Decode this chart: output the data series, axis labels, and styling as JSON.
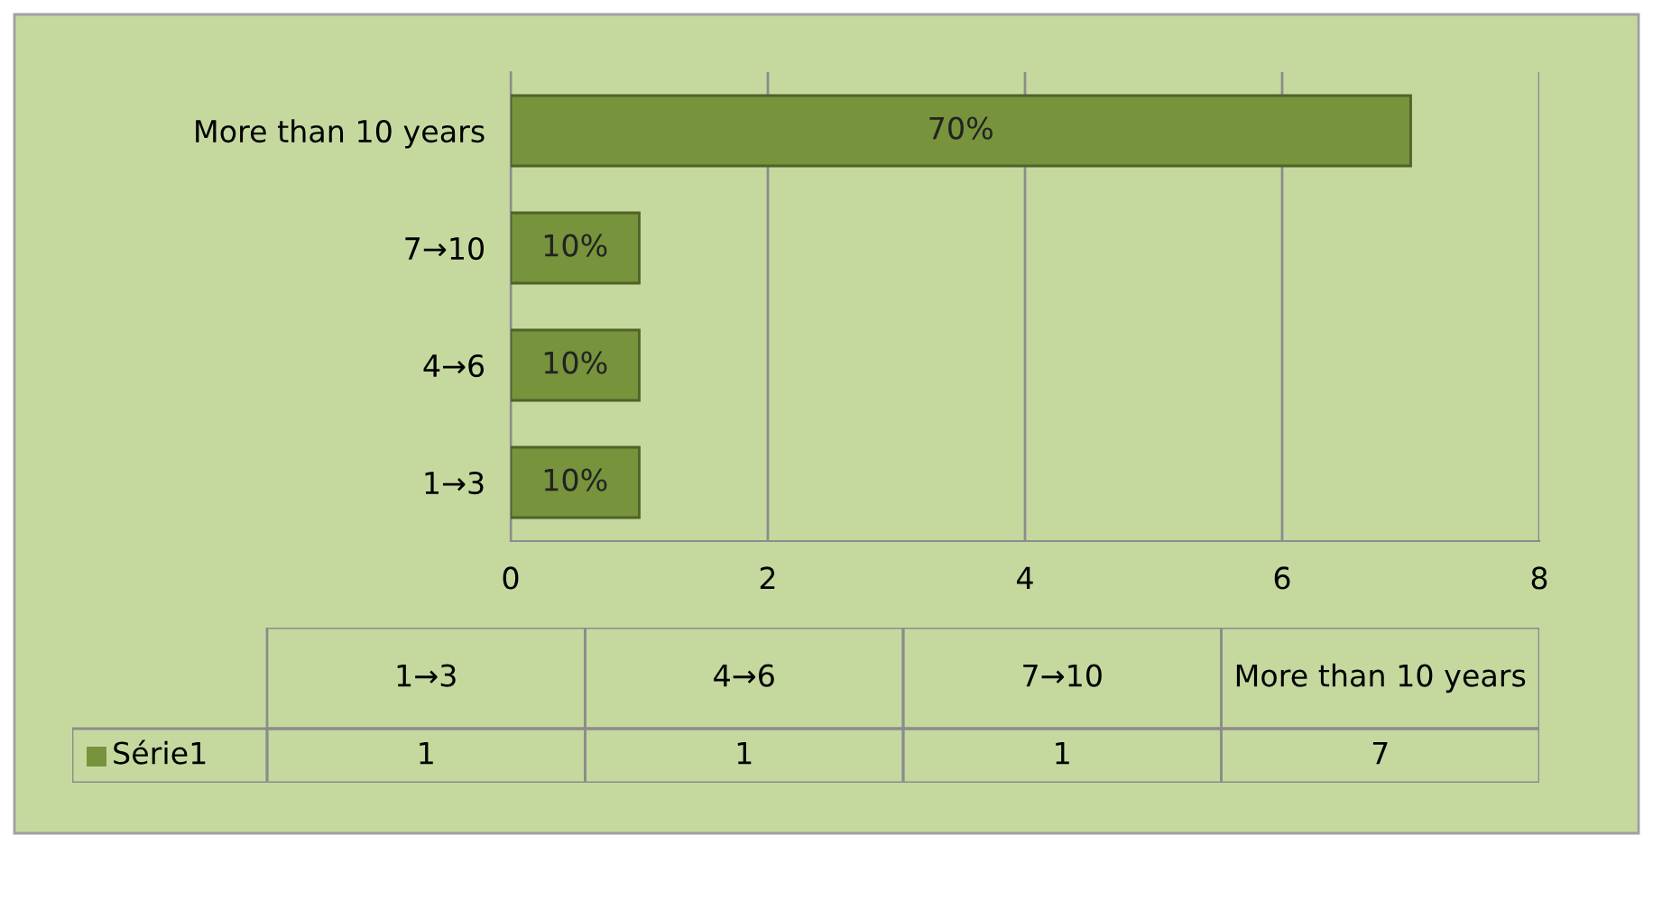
{
  "chart_data": [
    {
      "type": "bar",
      "orientation": "horizontal",
      "categories": [
        "More than 10 years",
        "7→10",
        "4→6",
        "1→3"
      ],
      "series": [
        {
          "color": "#77933c",
          "values": [
            7,
            1,
            1,
            1
          ]
        }
      ],
      "annotations": [
        "70%",
        "10%",
        "10%",
        "10%"
      ],
      "xlim": [
        0,
        8
      ],
      "xticks": [
        0,
        2,
        4,
        6,
        8
      ],
      "grid": "x"
    },
    {
      "type": "other",
      "categories": [
        "1→3",
        "4→6",
        "7→10",
        "More than 10 years"
      ],
      "series": [
        {
          "name": "Série1",
          "color": "#77933c",
          "values": [
            1,
            1,
            1,
            7
          ]
        }
      ],
      "legend": "left",
      "data_labels": true
    }
  ]
}
